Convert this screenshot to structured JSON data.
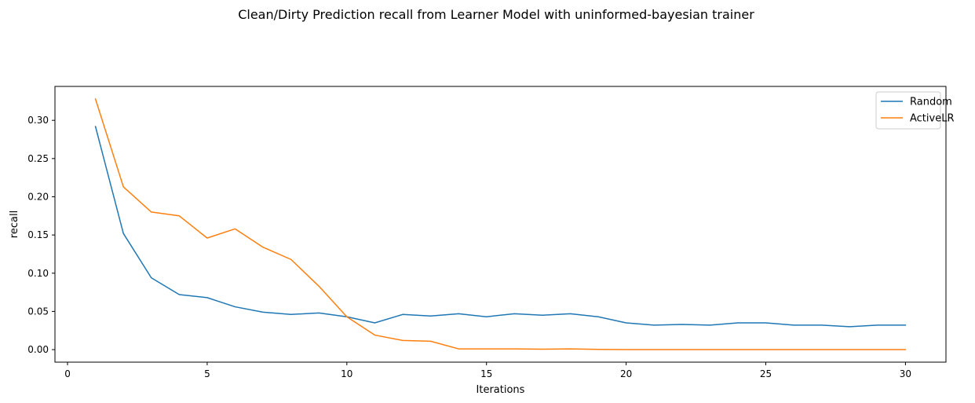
{
  "chart_data": {
    "type": "line",
    "title": "Clean/Dirty Prediction recall from Learner Model with uninformed-bayesian trainer",
    "xlabel": "Iterations",
    "ylabel": "recall",
    "xlim": [
      -0.45,
      31.45
    ],
    "ylim": [
      -0.0164,
      0.3444
    ],
    "xticks": [
      0,
      5,
      10,
      15,
      20,
      25,
      30
    ],
    "xtick_labels": [
      "0",
      "5",
      "10",
      "15",
      "20",
      "25",
      "30"
    ],
    "yticks": [
      0.0,
      0.05,
      0.1,
      0.15,
      0.2,
      0.25,
      0.3
    ],
    "ytick_labels": [
      "0.00",
      "0.05",
      "0.10",
      "0.15",
      "0.20",
      "0.25",
      "0.30"
    ],
    "grid": false,
    "legend_position": "upper right",
    "x": [
      1,
      2,
      3,
      4,
      5,
      6,
      7,
      8,
      9,
      10,
      11,
      12,
      13,
      14,
      15,
      16,
      17,
      18,
      19,
      20,
      21,
      22,
      23,
      24,
      25,
      26,
      27,
      28,
      29,
      30
    ],
    "series": [
      {
        "name": "Random",
        "color": "#1f77b4",
        "values": [
          0.292,
          0.152,
          0.094,
          0.072,
          0.068,
          0.056,
          0.049,
          0.046,
          0.048,
          0.043,
          0.035,
          0.046,
          0.044,
          0.047,
          0.043,
          0.047,
          0.045,
          0.047,
          0.043,
          0.035,
          0.032,
          0.033,
          0.032,
          0.035,
          0.035,
          0.032,
          0.032,
          0.03,
          0.032,
          0.032
        ]
      },
      {
        "name": "ActiveLR",
        "color": "#ff7f0e",
        "values": [
          0.328,
          0.213,
          0.18,
          0.175,
          0.146,
          0.158,
          0.134,
          0.118,
          0.083,
          0.043,
          0.019,
          0.012,
          0.011,
          0.001,
          0.001,
          0.001,
          0.0005,
          0.001,
          0.0003,
          0.0,
          0.0,
          0.0,
          0.0,
          0.0,
          0.0,
          0.0,
          0.0,
          0.0,
          0.0,
          0.0
        ]
      }
    ]
  }
}
